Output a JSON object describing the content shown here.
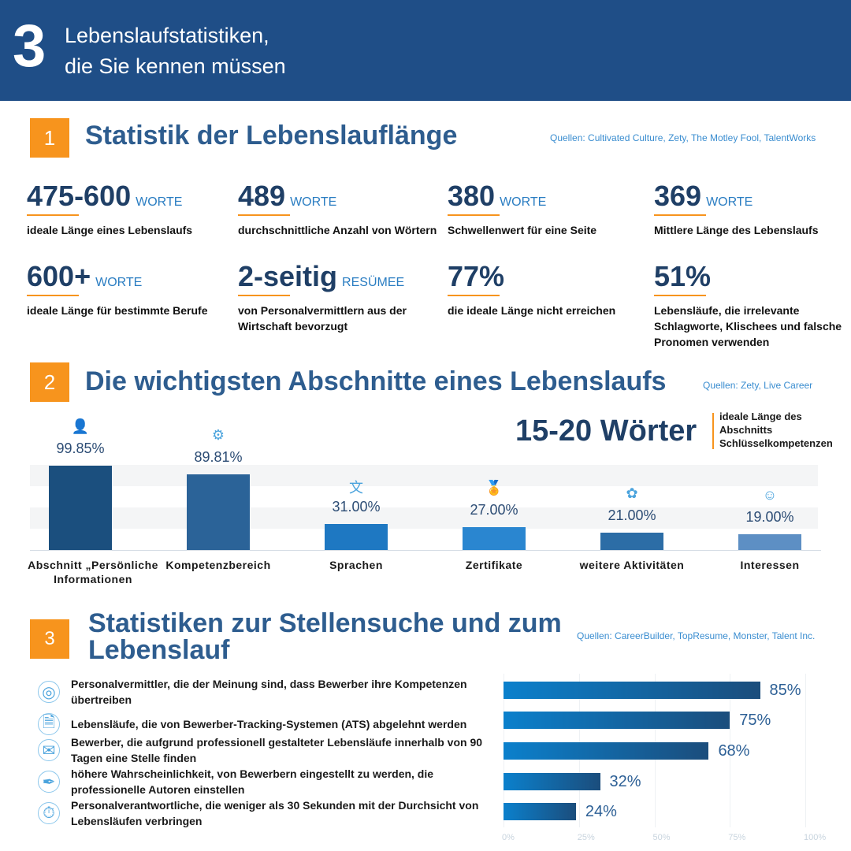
{
  "header": {
    "number": "3",
    "title_line1": "Lebenslaufstatistiken,",
    "title_line2": "die Sie kennen müssen"
  },
  "section1": {
    "badge": "1",
    "title": "Statistik der Lebenslauflänge",
    "source": "Quellen: Cultivated Culture, Zety, The Motley Fool, TalentWorks",
    "stats": [
      {
        "value": "475-600",
        "unit": "WORTE",
        "desc": "ideale Länge eines Lebenslaufs"
      },
      {
        "value": "489",
        "unit": "WORTE",
        "desc": "durchschnittliche Anzahl von Wörtern"
      },
      {
        "value": "380",
        "unit": "WORTE",
        "desc": "Schwellenwert für eine Seite"
      },
      {
        "value": "369",
        "unit": "WORTE",
        "desc": "Mittlere Länge des Lebenslaufs"
      },
      {
        "value": "600+",
        "unit": "WORTE",
        "desc": "ideale Länge für bestimmte Berufe"
      },
      {
        "value": "2-seitig",
        "unit": "RESÜMEE",
        "desc": "von Personalvermittlern aus der Wirtschaft bevorzugt"
      },
      {
        "value": "77%",
        "unit": "",
        "desc": "die ideale Länge nicht erreichen"
      },
      {
        "value": "51%",
        "unit": "",
        "desc": "Lebensläufe, die irrelevante Schlagworte, Klischees und falsche Pronomen verwenden"
      }
    ]
  },
  "section2": {
    "badge": "2",
    "title": "Die wichtigsten Abschnitte eines Lebenslaufs",
    "source": "Quellen: Zety, Live Career",
    "highlight_value": "15-20 Wörter",
    "highlight_desc": "ideale Länge des Abschnitts Schlüsselkompetenzen"
  },
  "section3": {
    "badge": "3",
    "title": "Statistiken zur Stellensuche und zum Lebenslauf",
    "source": "Quellen: CareerBuilder, TopResume, Monster, Talent Inc."
  },
  "chart_data": [
    {
      "type": "bar",
      "categories": [
        "Abschnitt „Persönliche Informationen",
        "Kompetenzbereich",
        "Sprachen",
        "Zertifikate",
        "weitere Aktivitäten",
        "Interessen"
      ],
      "values": [
        99.85,
        89.81,
        31.0,
        27.0,
        21.0,
        19.0
      ],
      "labels": [
        "99.85%",
        "89.81%",
        "31.00%",
        "27.00%",
        "21.00%",
        "19.00%"
      ],
      "icons": [
        "resume-person-icon",
        "skills-icon",
        "language-icon",
        "certificate-icon",
        "activities-icon",
        "interests-icon"
      ],
      "colors": [
        "#1b4f7e",
        "#2b6398",
        "#1e78c2",
        "#2a86d0",
        "#2c6da6",
        "#5d8fc4"
      ],
      "ylim": [
        0,
        100
      ]
    },
    {
      "type": "bar",
      "orientation": "horizontal",
      "categories": [
        "Personalvermittler, die der Meinung sind, dass Bewerber ihre Kompetenzen übertreiben",
        "Lebensläufe, die von Bewerber-Tracking-Systemen (ATS) abgelehnt werden",
        "Bewerber, die aufgrund professionell gestalteter Lebensläufe innerhalb von 90 Tagen eine Stelle finden",
        "höhere Wahrscheinlichkeit, von Bewerbern eingestellt zu werden, die professionelle Autoren einstellen",
        "Personalverantwortliche, die weniger als 30 Sekunden mit der Durchsicht von Lebensläufen verbringen"
      ],
      "values": [
        85,
        75,
        68,
        32,
        24
      ],
      "labels": [
        "85%",
        "75%",
        "68%",
        "32%",
        "24%"
      ],
      "icons": [
        "target-person-icon",
        "document-reject-icon",
        "mail-icon",
        "pen-icon",
        "stopwatch-icon"
      ],
      "xticks": [
        "0%",
        "25%",
        "50%",
        "75%",
        "100%"
      ],
      "xlim": [
        0,
        100
      ],
      "grid": true
    }
  ]
}
